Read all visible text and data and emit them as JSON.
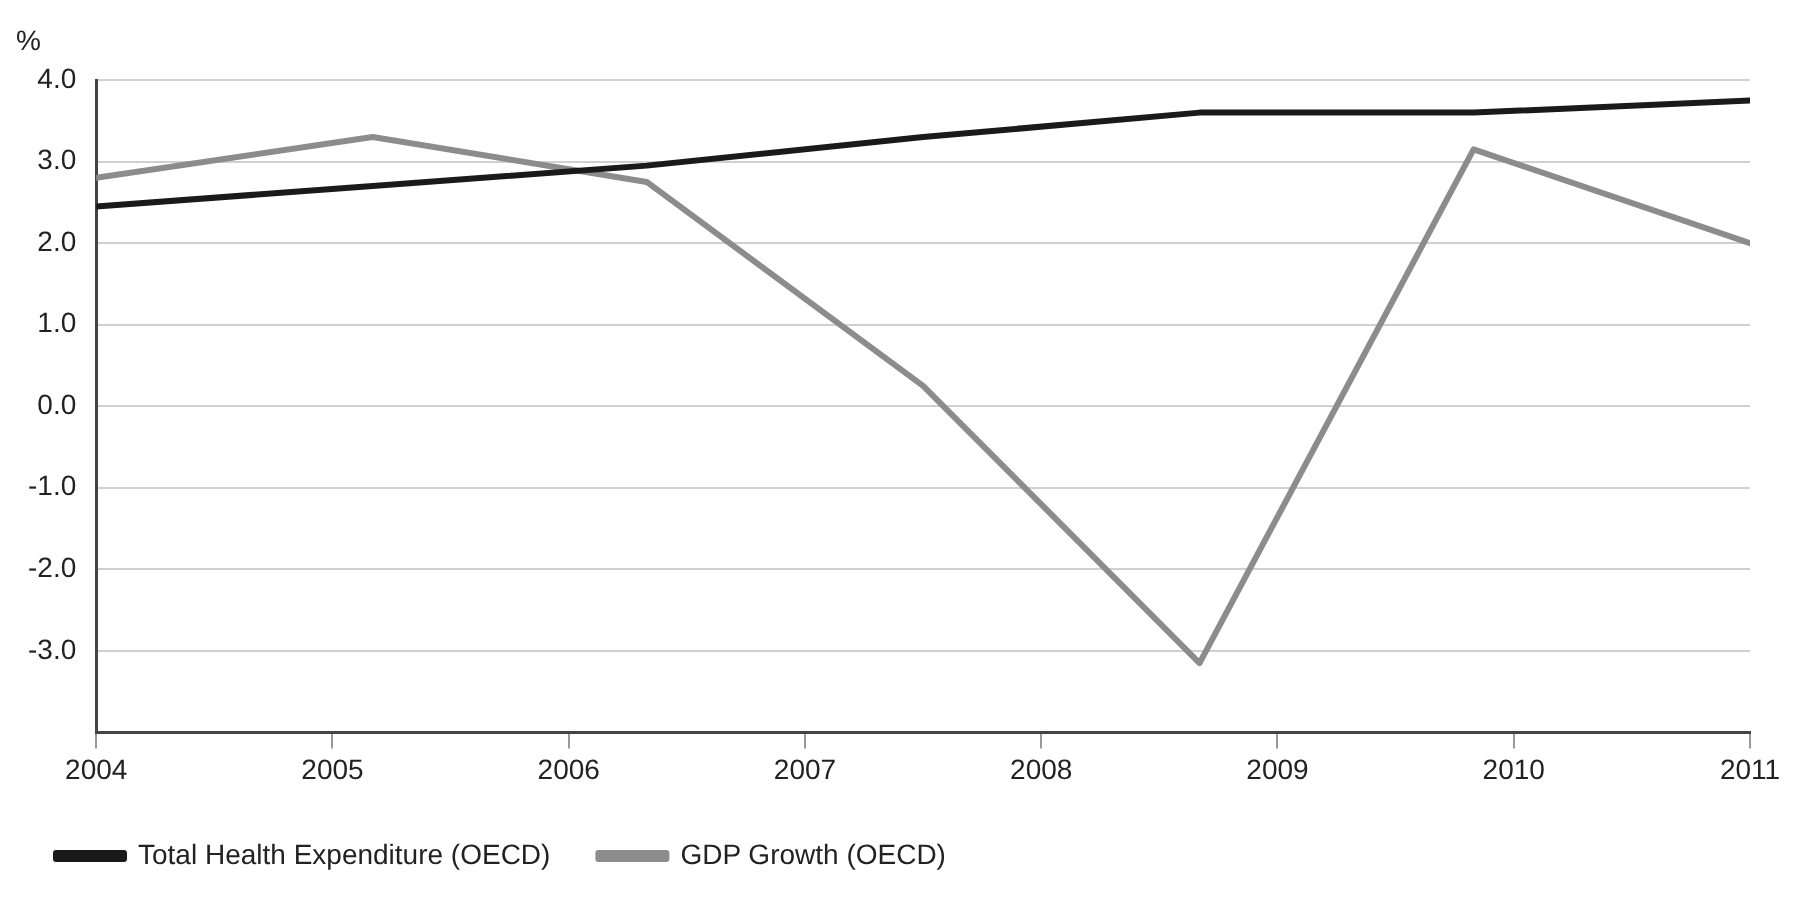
{
  "chart_data": {
    "type": "line",
    "ylabel": "%",
    "x": [
      2004,
      2005.17,
      2006.33,
      2007.5,
      2008.67,
      2009.83,
      2011
    ],
    "series": [
      {
        "name": "Total Health Expenditure (OECD)",
        "color": "#1a1a1a",
        "values": [
          2.45,
          2.7,
          2.95,
          3.3,
          3.6,
          3.6,
          3.75
        ]
      },
      {
        "name": "GDP Growth (OECD)",
        "color": "#8c8c8c",
        "values": [
          2.8,
          3.3,
          2.75,
          0.25,
          -3.15,
          3.15,
          2.0
        ]
      }
    ],
    "xlim": [
      2004,
      2011
    ],
    "xticks": [
      2004,
      2005,
      2006,
      2007,
      2008,
      2009,
      2010,
      2011
    ],
    "ylim": [
      -4,
      4
    ],
    "yticks": [
      {
        "value": -4,
        "label": null
      },
      {
        "value": -3,
        "label": "-3.0"
      },
      {
        "value": -2,
        "label": "-2.0"
      },
      {
        "value": -1,
        "label": "-1.0"
      },
      {
        "value": 0,
        "label": "0.0"
      },
      {
        "value": 1,
        "label": "1.0"
      },
      {
        "value": 2,
        "label": "2.0"
      },
      {
        "value": 3,
        "label": "3.0"
      },
      {
        "value": 4,
        "label": "4.0"
      }
    ],
    "grid": "y",
    "legend": "bottom left",
    "marker": "none",
    "line_style": "solid"
  }
}
